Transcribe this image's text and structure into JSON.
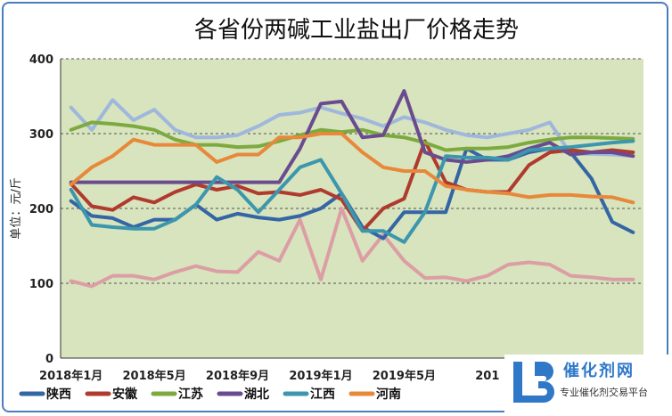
{
  "chart_data": {
    "type": "line",
    "title": "各省份两碱工业盐出厂价格走势",
    "ylabel": "单位：元/斤",
    "ylim": [
      0,
      400
    ],
    "yticks": [
      0,
      100,
      200,
      300,
      400
    ],
    "grid": true,
    "legend_position": "bottom",
    "x_tick_labels": [
      "2018年1月",
      "2018年5月",
      "2018年9月",
      "2019年1月",
      "2019年5月",
      "201"
    ],
    "x_tick_index": [
      0,
      4,
      8,
      12,
      16,
      20
    ],
    "x": [
      "2018年1月",
      "2018年2月",
      "2018年3月",
      "2018年4月",
      "2018年5月",
      "2018年6月",
      "2018年7月",
      "2018年8月",
      "2018年9月",
      "2018年10月",
      "2018年11月",
      "2018年12月",
      "2019年1月",
      "2019年2月",
      "2019年3月",
      "2019年4月",
      "2019年5月",
      "2019年6月",
      "2019年7月",
      "2019年8月",
      "2019年9月",
      "2019年10月",
      "2019年11月",
      "2019年12月",
      "2020年1月",
      "2020年2月",
      "2020年3月",
      "2020年4月"
    ],
    "series": [
      {
        "name": "陕西",
        "color": "#3465a4",
        "values": [
          210,
          190,
          187,
          175,
          185,
          185,
          205,
          185,
          193,
          188,
          185,
          190,
          200,
          220,
          175,
          160,
          195,
          195,
          195,
          280,
          265,
          265,
          275,
          280,
          275,
          240,
          182,
          168
        ]
      },
      {
        "name": "安徽",
        "color": "#b03a2e",
        "values": [
          233,
          203,
          198,
          215,
          208,
          222,
          232,
          225,
          230,
          220,
          222,
          218,
          225,
          212,
          170,
          200,
          213,
          290,
          235,
          225,
          222,
          222,
          258,
          275,
          278,
          275,
          278,
          275
        ]
      },
      {
        "name": "江苏",
        "color": "#7daa3e",
        "values": [
          305,
          315,
          313,
          310,
          305,
          292,
          285,
          285,
          282,
          283,
          290,
          298,
          305,
          302,
          305,
          298,
          295,
          288,
          278,
          280,
          280,
          282,
          288,
          292,
          295,
          295,
          294,
          293
        ]
      },
      {
        "name": "湖北",
        "color": "#6a4b90",
        "values": [
          235,
          235,
          235,
          235,
          235,
          235,
          235,
          235,
          235,
          235,
          235,
          280,
          340,
          343,
          295,
          298,
          357,
          275,
          265,
          262,
          265,
          270,
          280,
          288,
          272,
          275,
          275,
          270
        ]
      },
      {
        "name": "江西",
        "color": "#3c96ad",
        "values": [
          225,
          178,
          175,
          173,
          173,
          185,
          205,
          242,
          225,
          195,
          225,
          255,
          265,
          220,
          170,
          170,
          155,
          195,
          270,
          268,
          268,
          265,
          278,
          280,
          282,
          285,
          288,
          290
        ]
      },
      {
        "name": "河南",
        "color": "#e8883a",
        "values": [
          232,
          255,
          270,
          292,
          285,
          285,
          285,
          262,
          272,
          272,
          295,
          295,
          300,
          300,
          275,
          255,
          250,
          250,
          230,
          225,
          222,
          220,
          215,
          218,
          218,
          216,
          215,
          208
        ]
      },
      {
        "name": "",
        "color": "#dc9ea4",
        "values": [
          103,
          96,
          110,
          110,
          105,
          115,
          123,
          116,
          115,
          142,
          130,
          185,
          105,
          200,
          130,
          165,
          130,
          107,
          108,
          103,
          110,
          125,
          128,
          125,
          110,
          108,
          105,
          105
        ]
      },
      {
        "name": "",
        "color": "#9fb7dc",
        "values": [
          335,
          305,
          345,
          318,
          332,
          305,
          295,
          295,
          298,
          310,
          325,
          328,
          335,
          327,
          320,
          310,
          322,
          315,
          305,
          298,
          295,
          300,
          305,
          315,
          273,
          273,
          272,
          270
        ]
      }
    ]
  },
  "logo": {
    "letters": "LB",
    "name": "催化剂网",
    "subtitle": "专业催化剂交易平台",
    "color": "#2f78c8"
  }
}
